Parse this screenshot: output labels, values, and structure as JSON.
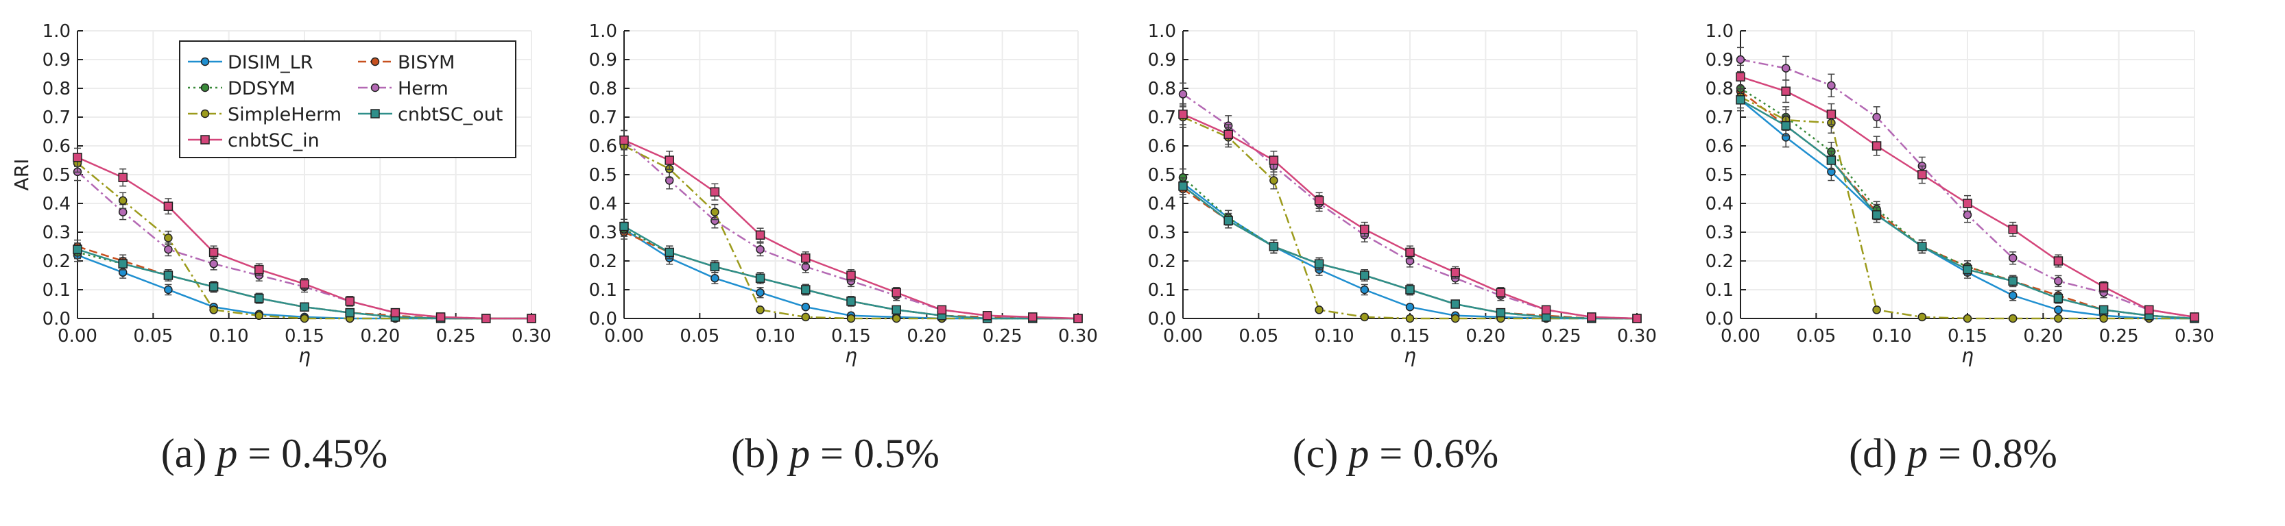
{
  "colors": {
    "DISIM_LR": "#1f8fd0",
    "BISYM": "#c7501f",
    "DDSYM": "#3a8a3a",
    "Herm": "#b469b4",
    "SimpleHerm": "#9c9b1c",
    "cnbtSC_out": "#2f8f8a",
    "cnbtSC_in": "#d4457a"
  },
  "chart_data": [
    {
      "type": "line",
      "caption": "(a) p = 0.45%",
      "caption_prefix": "(a)",
      "caption_var": "p",
      "caption_value": "= 0.45%",
      "xlabel": "η",
      "ylabel": "ARI",
      "xlim": [
        0,
        0.3
      ],
      "ylim": [
        0,
        1
      ],
      "grid": true,
      "legend_position": "top-left",
      "x_ticks": [
        "0.00",
        "0.05",
        "0.10",
        "0.15",
        "0.20",
        "0.25",
        "0.30"
      ],
      "y_ticks": [
        "0.0",
        "0.1",
        "0.2",
        "0.3",
        "0.4",
        "0.5",
        "0.6",
        "0.7",
        "0.8",
        "0.9",
        "1.0"
      ],
      "x": [
        0,
        0.03,
        0.06,
        0.09,
        0.12,
        0.15,
        0.18,
        0.21,
        0.24,
        0.27,
        0.3
      ],
      "series": [
        {
          "name": "DISIM_LR",
          "values": [
            0.22,
            0.16,
            0.1,
            0.04,
            0.015,
            0.005,
            0,
            0,
            0,
            0,
            0
          ]
        },
        {
          "name": "BISYM",
          "values": [
            0.25,
            0.2,
            0.15,
            0.11,
            0.07,
            0.04,
            0.02,
            0.01,
            0,
            0,
            0
          ]
        },
        {
          "name": "DDSYM",
          "values": [
            0.23,
            0.19,
            0.15,
            0.11,
            0.07,
            0.04,
            0.02,
            0.005,
            0,
            0,
            0
          ]
        },
        {
          "name": "Herm",
          "values": [
            0.51,
            0.37,
            0.24,
            0.19,
            0.15,
            0.11,
            0.06,
            0.02,
            0.005,
            0,
            0
          ]
        },
        {
          "name": "SimpleHerm",
          "values": [
            0.54,
            0.41,
            0.28,
            0.03,
            0.01,
            0,
            0,
            0,
            0,
            0,
            0
          ]
        },
        {
          "name": "cnbtSC_out",
          "values": [
            0.24,
            0.19,
            0.15,
            0.11,
            0.07,
            0.04,
            0.02,
            0.005,
            0,
            0,
            0
          ]
        },
        {
          "name": "cnbtSC_in",
          "values": [
            0.56,
            0.49,
            0.39,
            0.23,
            0.17,
            0.12,
            0.06,
            0.02,
            0.005,
            0,
            0
          ]
        }
      ]
    },
    {
      "type": "line",
      "caption": "(b) p = 0.5%",
      "caption_prefix": "(b)",
      "caption_var": "p",
      "caption_value": "= 0.5%",
      "xlabel": "η",
      "ylabel": "",
      "xlim": [
        0,
        0.3
      ],
      "ylim": [
        0,
        1
      ],
      "grid": true,
      "x_ticks": [
        "0.00",
        "0.05",
        "0.10",
        "0.15",
        "0.20",
        "0.25",
        "0.30"
      ],
      "y_ticks": [
        "0.0",
        "0.1",
        "0.2",
        "0.3",
        "0.4",
        "0.5",
        "0.6",
        "0.7",
        "0.8",
        "0.9",
        "1.0"
      ],
      "x": [
        0,
        0.03,
        0.06,
        0.09,
        0.12,
        0.15,
        0.18,
        0.21,
        0.24,
        0.27,
        0.3
      ],
      "series": [
        {
          "name": "DISIM_LR",
          "values": [
            0.31,
            0.21,
            0.14,
            0.09,
            0.04,
            0.01,
            0.005,
            0,
            0,
            0,
            0
          ]
        },
        {
          "name": "BISYM",
          "values": [
            0.3,
            0.23,
            0.18,
            0.14,
            0.1,
            0.06,
            0.03,
            0.01,
            0.005,
            0,
            0
          ]
        },
        {
          "name": "DDSYM",
          "values": [
            0.31,
            0.23,
            0.18,
            0.14,
            0.1,
            0.06,
            0.03,
            0.01,
            0,
            0,
            0
          ]
        },
        {
          "name": "Herm",
          "values": [
            0.62,
            0.48,
            0.34,
            0.24,
            0.18,
            0.13,
            0.08,
            0.03,
            0.01,
            0,
            0
          ]
        },
        {
          "name": "SimpleHerm",
          "values": [
            0.6,
            0.52,
            0.37,
            0.03,
            0.005,
            0,
            0,
            0,
            0,
            0,
            0
          ]
        },
        {
          "name": "cnbtSC_out",
          "values": [
            0.32,
            0.23,
            0.18,
            0.14,
            0.1,
            0.06,
            0.03,
            0.01,
            0,
            0,
            0
          ]
        },
        {
          "name": "cnbtSC_in",
          "values": [
            0.62,
            0.55,
            0.44,
            0.29,
            0.21,
            0.15,
            0.09,
            0.03,
            0.01,
            0.005,
            0
          ]
        }
      ]
    },
    {
      "type": "line",
      "caption": "(c) p = 0.6%",
      "caption_prefix": "(c)",
      "caption_var": "p",
      "caption_value": "= 0.6%",
      "xlabel": "η",
      "ylabel": "",
      "xlim": [
        0,
        0.3
      ],
      "ylim": [
        0,
        1
      ],
      "grid": true,
      "x_ticks": [
        "0.00",
        "0.05",
        "0.10",
        "0.15",
        "0.20",
        "0.25",
        "0.30"
      ],
      "y_ticks": [
        "0.0",
        "0.1",
        "0.2",
        "0.3",
        "0.4",
        "0.5",
        "0.6",
        "0.7",
        "0.8",
        "0.9",
        "1.0"
      ],
      "x": [
        0,
        0.03,
        0.06,
        0.09,
        0.12,
        0.15,
        0.18,
        0.21,
        0.24,
        0.27,
        0.3
      ],
      "series": [
        {
          "name": "DISIM_LR",
          "values": [
            0.47,
            0.35,
            0.25,
            0.17,
            0.1,
            0.04,
            0.01,
            0.005,
            0,
            0,
            0
          ]
        },
        {
          "name": "BISYM",
          "values": [
            0.45,
            0.34,
            0.25,
            0.19,
            0.15,
            0.1,
            0.05,
            0.02,
            0.01,
            0,
            0
          ]
        },
        {
          "name": "DDSYM",
          "values": [
            0.49,
            0.35,
            0.25,
            0.19,
            0.15,
            0.1,
            0.05,
            0.02,
            0.005,
            0,
            0
          ]
        },
        {
          "name": "Herm",
          "values": [
            0.78,
            0.67,
            0.53,
            0.4,
            0.29,
            0.2,
            0.14,
            0.08,
            0.03,
            0.005,
            0
          ]
        },
        {
          "name": "SimpleHerm",
          "values": [
            0.7,
            0.63,
            0.48,
            0.03,
            0.005,
            0,
            0,
            0,
            0,
            0,
            0
          ]
        },
        {
          "name": "cnbtSC_out",
          "values": [
            0.46,
            0.34,
            0.25,
            0.19,
            0.15,
            0.1,
            0.05,
            0.02,
            0.005,
            0,
            0
          ]
        },
        {
          "name": "cnbtSC_in",
          "values": [
            0.71,
            0.64,
            0.55,
            0.41,
            0.31,
            0.23,
            0.16,
            0.09,
            0.03,
            0.005,
            0
          ]
        }
      ]
    },
    {
      "type": "line",
      "caption": "(d) p = 0.8%",
      "caption_prefix": "(d)",
      "caption_var": "p",
      "caption_value": "= 0.8%",
      "xlabel": "η",
      "ylabel": "",
      "xlim": [
        0,
        0.3
      ],
      "ylim": [
        0,
        1
      ],
      "grid": true,
      "x_ticks": [
        "0.00",
        "0.05",
        "0.10",
        "0.15",
        "0.20",
        "0.25",
        "0.30"
      ],
      "y_ticks": [
        "0.0",
        "0.1",
        "0.2",
        "0.3",
        "0.4",
        "0.5",
        "0.6",
        "0.7",
        "0.8",
        "0.9",
        "1.0"
      ],
      "x": [
        0,
        0.03,
        0.06,
        0.09,
        0.12,
        0.15,
        0.18,
        0.21,
        0.24,
        0.27,
        0.3
      ],
      "series": [
        {
          "name": "DISIM_LR",
          "values": [
            0.76,
            0.63,
            0.51,
            0.36,
            0.25,
            0.16,
            0.08,
            0.03,
            0.01,
            0,
            0
          ]
        },
        {
          "name": "BISYM",
          "values": [
            0.79,
            0.67,
            0.55,
            0.37,
            0.25,
            0.18,
            0.13,
            0.08,
            0.03,
            0.01,
            0
          ]
        },
        {
          "name": "DDSYM",
          "values": [
            0.8,
            0.7,
            0.58,
            0.38,
            0.25,
            0.18,
            0.13,
            0.07,
            0.03,
            0.01,
            0
          ]
        },
        {
          "name": "Herm",
          "values": [
            0.9,
            0.87,
            0.81,
            0.7,
            0.53,
            0.36,
            0.21,
            0.13,
            0.09,
            0.03,
            0.005
          ]
        },
        {
          "name": "SimpleHerm",
          "values": [
            0.77,
            0.69,
            0.68,
            0.03,
            0.005,
            0,
            0,
            0,
            0,
            0,
            0
          ]
        },
        {
          "name": "cnbtSC_out",
          "values": [
            0.76,
            0.67,
            0.55,
            0.36,
            0.25,
            0.17,
            0.13,
            0.07,
            0.03,
            0.01,
            0
          ]
        },
        {
          "name": "cnbtSC_in",
          "values": [
            0.84,
            0.79,
            0.71,
            0.6,
            0.5,
            0.4,
            0.31,
            0.2,
            0.11,
            0.03,
            0.005
          ]
        }
      ]
    }
  ]
}
